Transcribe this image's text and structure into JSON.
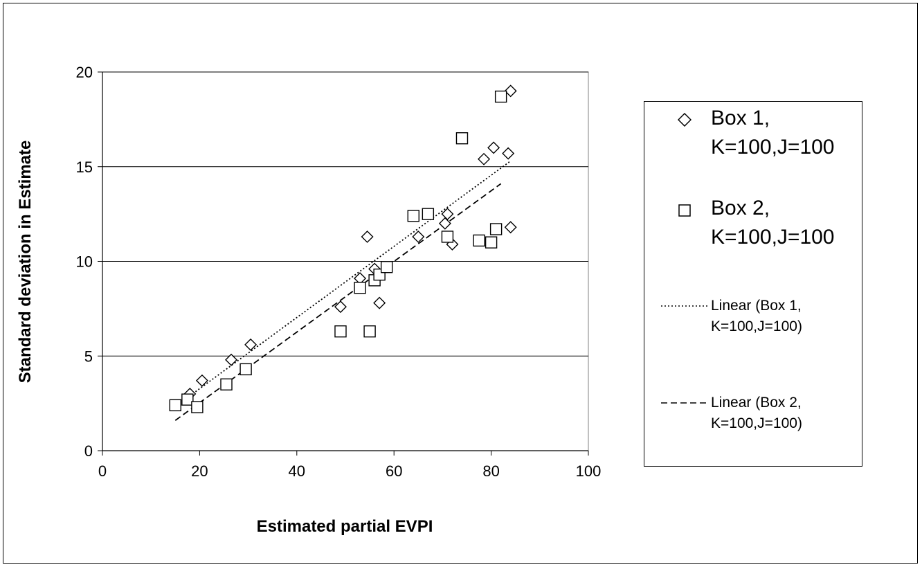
{
  "chart_data": {
    "type": "scatter",
    "title": "",
    "xlabel": "Estimated partial EVPI",
    "ylabel": "Standard deviation in Estimate",
    "xlim": [
      0,
      100
    ],
    "ylim": [
      0,
      20
    ],
    "xticks": [
      "0",
      "20",
      "40",
      "60",
      "80",
      "100"
    ],
    "yticks": [
      "0",
      "5",
      "10",
      "15",
      "20"
    ],
    "grid": "horizontal major gridlines",
    "legend_position": "right",
    "series": [
      {
        "name": "Box 1, K=100,J=100",
        "marker": "diamond",
        "points": [
          [
            18,
            3.0
          ],
          [
            20.5,
            3.7
          ],
          [
            26.5,
            4.8
          ],
          [
            30.5,
            5.6
          ],
          [
            49,
            7.6
          ],
          [
            53,
            9.1
          ],
          [
            54.5,
            11.3
          ],
          [
            56,
            9.6
          ],
          [
            57,
            7.8
          ],
          [
            65,
            11.3
          ],
          [
            70.5,
            12.0
          ],
          [
            71,
            12.5
          ],
          [
            72,
            10.9
          ],
          [
            78.5,
            15.4
          ],
          [
            80.5,
            16.0
          ],
          [
            83.5,
            15.7
          ],
          [
            84,
            19.0
          ],
          [
            84,
            11.8
          ]
        ]
      },
      {
        "name": "Box 2, K=100,J=100",
        "marker": "square",
        "points": [
          [
            15,
            2.4
          ],
          [
            17.5,
            2.7
          ],
          [
            19.5,
            2.3
          ],
          [
            25.5,
            3.5
          ],
          [
            29.5,
            4.3
          ],
          [
            49,
            6.3
          ],
          [
            53,
            8.6
          ],
          [
            55,
            6.3
          ],
          [
            56,
            9.0
          ],
          [
            57,
            9.3
          ],
          [
            58.5,
            9.7
          ],
          [
            64,
            12.4
          ],
          [
            67,
            12.5
          ],
          [
            71,
            11.3
          ],
          [
            74,
            16.5
          ],
          [
            77.5,
            11.1
          ],
          [
            80,
            11.0
          ],
          [
            81,
            11.7
          ],
          [
            82,
            18.7
          ]
        ]
      },
      {
        "name": "Linear (Box 1, K=100,J=100)",
        "type": "trendline",
        "line_style": "dotted",
        "points": [
          [
            18,
            2.9
          ],
          [
            84,
            15.3
          ]
        ]
      },
      {
        "name": "Linear (Box 2, K=100,J=100)",
        "type": "trendline",
        "line_style": "dashed",
        "points": [
          [
            15,
            1.6
          ],
          [
            82,
            14.1
          ]
        ]
      }
    ]
  },
  "legend": {
    "entry1_label": "Box 1,\nK=100,J=100",
    "entry2_label": "Box 2,\nK=100,J=100",
    "entry3_label": "Linear (Box 1,\nK=100,J=100)",
    "entry4_label": "Linear (Box 2,\nK=100,J=100)"
  }
}
